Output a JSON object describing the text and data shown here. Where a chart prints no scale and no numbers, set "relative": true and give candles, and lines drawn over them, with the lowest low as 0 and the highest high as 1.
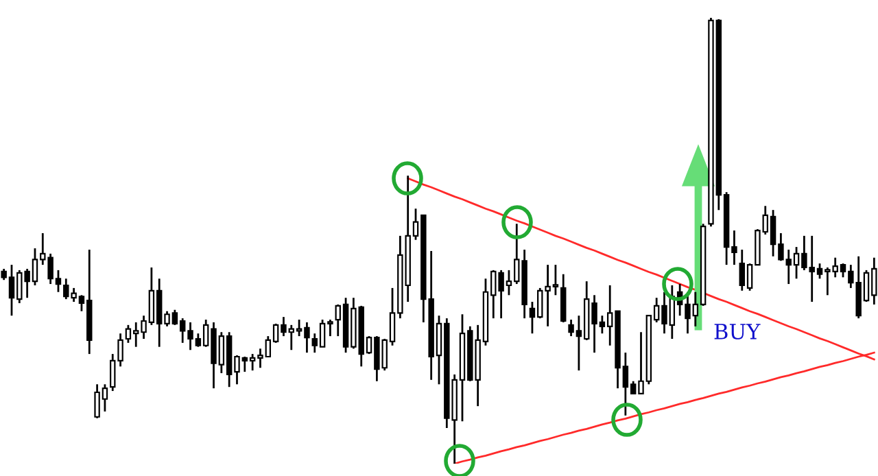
{
  "chart_data": {
    "type": "candlestick",
    "relative": true,
    "categories": [
      null,
      null,
      null,
      null,
      null,
      null,
      null,
      null,
      null,
      null,
      null,
      null,
      null,
      null,
      null,
      null,
      null,
      null,
      null,
      null,
      null,
      null,
      null,
      null,
      null,
      null,
      null,
      null,
      null,
      null,
      null,
      null,
      null,
      null,
      null,
      null,
      null,
      null,
      null,
      null,
      null,
      null,
      null,
      null,
      null,
      null,
      null,
      null,
      null,
      null,
      null,
      null,
      null,
      null,
      null,
      null,
      null,
      null,
      null,
      null,
      null,
      null,
      null,
      null,
      null,
      null,
      null,
      null,
      null,
      null,
      null,
      null,
      null,
      null,
      null,
      null,
      null,
      null,
      null,
      null,
      null,
      null,
      null,
      null,
      null,
      null,
      null,
      null,
      null,
      null,
      null,
      null,
      null,
      null,
      null,
      null,
      null,
      null,
      null,
      null,
      null,
      null,
      null,
      null,
      null,
      null,
      null,
      null,
      null,
      null,
      null,
      null,
      null
    ],
    "ohlc": [
      [
        0.431,
        0.437,
        0.412,
        0.418
      ],
      [
        0.418,
        0.446,
        0.332,
        0.372
      ],
      [
        0.369,
        0.434,
        0.36,
        0.428
      ],
      [
        0.431,
        0.437,
        0.372,
        0.409
      ],
      [
        0.409,
        0.483,
        0.4,
        0.458
      ],
      [
        0.458,
        0.517,
        0.446,
        0.471
      ],
      [
        0.462,
        0.471,
        0.403,
        0.415
      ],
      [
        0.415,
        0.434,
        0.385,
        0.403
      ],
      [
        0.4,
        0.415,
        0.369,
        0.375
      ],
      [
        0.372,
        0.394,
        0.363,
        0.382
      ],
      [
        0.375,
        0.378,
        0.342,
        0.36
      ],
      [
        0.366,
        0.48,
        0.246,
        0.277
      ],
      [
        0.105,
        0.178,
        0.102,
        0.16
      ],
      [
        0.145,
        0.178,
        0.117,
        0.169
      ],
      [
        0.172,
        0.246,
        0.163,
        0.231
      ],
      [
        0.231,
        0.292,
        0.218,
        0.277
      ],
      [
        0.28,
        0.311,
        0.271,
        0.302
      ],
      [
        0.292,
        0.317,
        0.262,
        0.298
      ],
      [
        0.295,
        0.332,
        0.28,
        0.32
      ],
      [
        0.317,
        0.44,
        0.311,
        0.388
      ],
      [
        0.388,
        0.415,
        0.262,
        0.314
      ],
      [
        0.314,
        0.342,
        0.308,
        0.335
      ],
      [
        0.338,
        0.345,
        0.311,
        0.314
      ],
      [
        0.32,
        0.326,
        0.271,
        0.298
      ],
      [
        0.298,
        0.317,
        0.255,
        0.28
      ],
      [
        0.28,
        0.292,
        0.262,
        0.265
      ],
      [
        0.265,
        0.323,
        0.262,
        0.311
      ],
      [
        0.302,
        0.317,
        0.169,
        0.225
      ],
      [
        0.222,
        0.295,
        0.203,
        0.286
      ],
      [
        0.286,
        0.295,
        0.172,
        0.2
      ],
      [
        0.206,
        0.243,
        0.178,
        0.24
      ],
      [
        0.237,
        0.24,
        0.206,
        0.231
      ],
      [
        0.231,
        0.246,
        0.209,
        0.237
      ],
      [
        0.237,
        0.258,
        0.215,
        0.243
      ],
      [
        0.24,
        0.286,
        0.24,
        0.277
      ],
      [
        0.274,
        0.314,
        0.271,
        0.311
      ],
      [
        0.311,
        0.329,
        0.286,
        0.295
      ],
      [
        0.295,
        0.311,
        0.255,
        0.302
      ],
      [
        0.298,
        0.323,
        0.286,
        0.302
      ],
      [
        0.305,
        0.317,
        0.249,
        0.283
      ],
      [
        0.28,
        0.292,
        0.249,
        0.265
      ],
      [
        0.262,
        0.323,
        0.262,
        0.314
      ],
      [
        0.314,
        0.323,
        0.286,
        0.317
      ],
      [
        0.323,
        0.357,
        0.286,
        0.354
      ],
      [
        0.357,
        0.372,
        0.249,
        0.262
      ],
      [
        0.262,
        0.372,
        0.258,
        0.348
      ],
      [
        0.351,
        0.354,
        0.218,
        0.246
      ],
      [
        0.249,
        0.286,
        0.246,
        0.283
      ],
      [
        0.283,
        0.286,
        0.185,
        0.212
      ],
      [
        0.215,
        0.28,
        0.209,
        0.277
      ],
      [
        0.274,
        0.394,
        0.265,
        0.338
      ],
      [
        0.338,
        0.511,
        0.326,
        0.468
      ],
      [
        0.4,
        0.646,
        0.363,
        0.511
      ],
      [
        0.511,
        0.572,
        0.502,
        0.542
      ],
      [
        0.557,
        0.557,
        0.317,
        0.369
      ],
      [
        0.369,
        0.477,
        0.188,
        0.24
      ],
      [
        0.243,
        0.332,
        0.178,
        0.314
      ],
      [
        0.314,
        0.326,
        0.08,
        0.102
      ],
      [
        0.098,
        0.2,
        0.0,
        0.188
      ],
      [
        0.188,
        0.335,
        0.095,
        0.292
      ],
      [
        0.298,
        0.308,
        0.185,
        0.188
      ],
      [
        0.188,
        0.311,
        0.129,
        0.277
      ],
      [
        0.274,
        0.415,
        0.265,
        0.385
      ],
      [
        0.378,
        0.434,
        0.326,
        0.431
      ],
      [
        0.428,
        0.434,
        0.326,
        0.388
      ],
      [
        0.4,
        0.434,
        0.378,
        0.409
      ],
      [
        0.409,
        0.538,
        0.403,
        0.458
      ],
      [
        0.455,
        0.48,
        0.326,
        0.357
      ],
      [
        0.348,
        0.363,
        0.292,
        0.329
      ],
      [
        0.329,
        0.394,
        0.326,
        0.388
      ],
      [
        0.388,
        0.446,
        0.308,
        0.397
      ],
      [
        0.397,
        0.446,
        0.378,
        0.4
      ],
      [
        0.394,
        0.425,
        0.317,
        0.32
      ],
      [
        0.311,
        0.323,
        0.286,
        0.295
      ],
      [
        0.298,
        0.332,
        0.209,
        0.286
      ],
      [
        0.28,
        0.409,
        0.277,
        0.369
      ],
      [
        0.36,
        0.378,
        0.249,
        0.314
      ],
      [
        0.317,
        0.332,
        0.292,
        0.308
      ],
      [
        0.308,
        0.4,
        0.265,
        0.338
      ],
      [
        0.342,
        0.342,
        0.169,
        0.215
      ],
      [
        0.218,
        0.249,
        0.108,
        0.172
      ],
      [
        0.178,
        0.185,
        0.157,
        0.157
      ],
      [
        0.157,
        0.295,
        0.157,
        0.185
      ],
      [
        0.185,
        0.332,
        0.178,
        0.332
      ],
      [
        0.323,
        0.372,
        0.317,
        0.354
      ],
      [
        0.354,
        0.385,
        0.292,
        0.314
      ],
      [
        0.311,
        0.4,
        0.28,
        0.375
      ],
      [
        0.385,
        0.403,
        0.332,
        0.357
      ],
      [
        0.357,
        0.385,
        0.292,
        0.326
      ],
      [
        0.332,
        0.385,
        0.308,
        0.357
      ],
      [
        0.357,
        0.538,
        0.354,
        0.532
      ],
      [
        0.538,
        1.0,
        0.532,
        0.994
      ],
      [
        0.994,
        0.997,
        0.569,
        0.603
      ],
      [
        0.603,
        0.609,
        0.446,
        0.486
      ],
      [
        0.486,
        0.523,
        0.446,
        0.474
      ],
      [
        0.449,
        0.48,
        0.388,
        0.4
      ],
      [
        0.394,
        0.449,
        0.388,
        0.446
      ],
      [
        0.446,
        0.526,
        0.446,
        0.523
      ],
      [
        0.52,
        0.578,
        0.514,
        0.557
      ],
      [
        0.554,
        0.569,
        0.465,
        0.492
      ],
      [
        0.492,
        0.517,
        0.455,
        0.458
      ],
      [
        0.458,
        0.48,
        0.403,
        0.446
      ],
      [
        0.446,
        0.486,
        0.415,
        0.471
      ],
      [
        0.471,
        0.511,
        0.434,
        0.44
      ],
      [
        0.44,
        0.511,
        0.363,
        0.431
      ],
      [
        0.437,
        0.449,
        0.415,
        0.425
      ],
      [
        0.431,
        0.44,
        0.378,
        0.431
      ],
      [
        0.431,
        0.462,
        0.418,
        0.443
      ],
      [
        0.446,
        0.449,
        0.418,
        0.431
      ],
      [
        0.431,
        0.446,
        0.394,
        0.406
      ],
      [
        0.406,
        0.465,
        0.326,
        0.332
      ],
      [
        0.366,
        0.434,
        0.363,
        0.428
      ],
      [
        0.378,
        0.462,
        0.357,
        0.437
      ]
    ],
    "series": [
      {
        "type": "line",
        "color": "#ff2a2a",
        "values": [
          null,
          null,
          null,
          null,
          null,
          null,
          null,
          null,
          null,
          null,
          null,
          null,
          null,
          null,
          null,
          null,
          null,
          null,
          null,
          null,
          null,
          null,
          null,
          null,
          null,
          null,
          null,
          null,
          null,
          null,
          null,
          null,
          null,
          null,
          null,
          null,
          null,
          null,
          null,
          null,
          null,
          null,
          null,
          null,
          null,
          null,
          null,
          null,
          null,
          null,
          null,
          null,
          0.64,
          0.633,
          0.626,
          0.62,
          0.613,
          0.606,
          0.599,
          0.593,
          0.586,
          0.579,
          0.572,
          0.566,
          0.559,
          0.552,
          0.545,
          0.539,
          0.532,
          0.525,
          0.518,
          0.511,
          0.505,
          0.498,
          0.491,
          0.484,
          0.478,
          0.471,
          0.464,
          0.457,
          0.451,
          0.444,
          0.437,
          0.43,
          0.424,
          0.417,
          0.41,
          0.403,
          0.396,
          0.39,
          0.383,
          0.376,
          0.369,
          0.363,
          0.356,
          0.349,
          0.342,
          0.336,
          0.329,
          0.322,
          0.315,
          0.308,
          0.302,
          0.295,
          0.288,
          0.281,
          0.275,
          0.268,
          0.261,
          0.254,
          0.247,
          0.241,
          0.234
        ]
      },
      {
        "type": "line",
        "color": "#ff2a2a",
        "values": [
          null,
          null,
          null,
          null,
          null,
          null,
          null,
          null,
          null,
          null,
          null,
          null,
          null,
          null,
          null,
          null,
          null,
          null,
          null,
          null,
          null,
          null,
          null,
          null,
          null,
          null,
          null,
          null,
          null,
          null,
          null,
          null,
          null,
          null,
          null,
          null,
          null,
          null,
          null,
          null,
          null,
          null,
          null,
          null,
          null,
          null,
          null,
          null,
          null,
          null,
          null,
          null,
          null,
          null,
          null,
          null,
          null,
          null,
          0.0,
          0.005,
          0.009,
          0.014,
          0.018,
          0.023,
          0.028,
          0.032,
          0.037,
          0.041,
          0.046,
          0.051,
          0.055,
          0.06,
          0.065,
          0.069,
          0.074,
          0.078,
          0.083,
          0.088,
          0.092,
          0.097,
          0.101,
          0.106,
          0.111,
          0.115,
          0.12,
          0.124,
          0.129,
          0.134,
          0.138,
          0.143,
          0.147,
          0.152,
          0.157,
          0.161,
          0.166,
          0.171,
          0.175,
          0.18,
          0.184,
          0.189,
          0.194,
          0.198,
          0.203,
          0.207,
          0.212,
          0.217,
          0.221,
          0.226,
          0.23,
          0.235,
          0.24,
          0.244,
          0.249
        ]
      }
    ],
    "annotations": [
      "BUY"
    ]
  }
}
